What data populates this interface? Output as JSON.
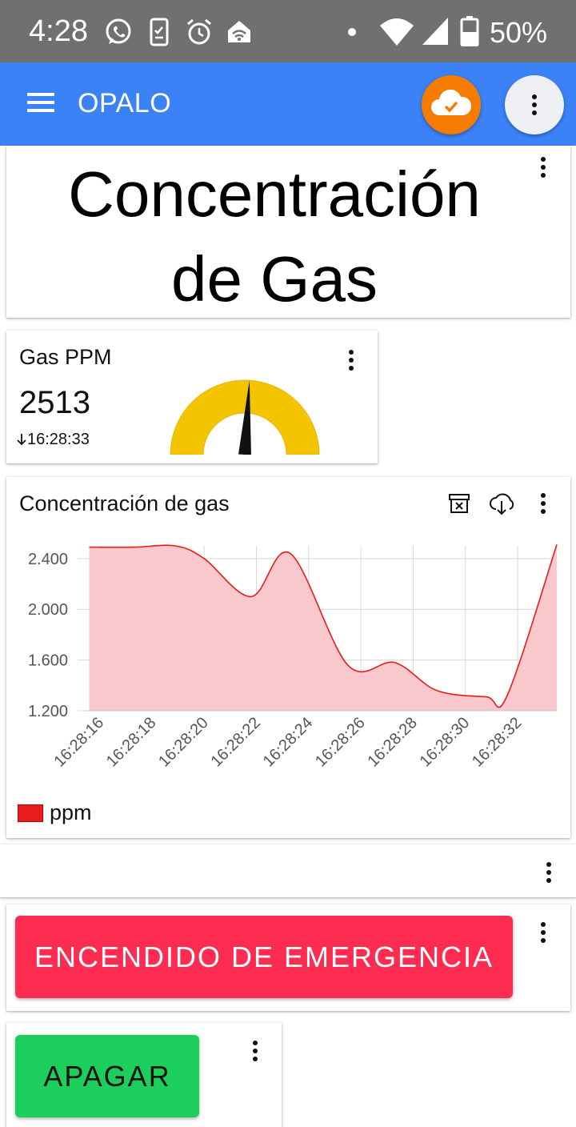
{
  "status_bar": {
    "time": "4:28",
    "battery": "50%",
    "icons": [
      "whatsapp-icon",
      "phone-check-icon",
      "alarm-icon",
      "home-wifi-icon",
      "dot-icon",
      "wifi-icon",
      "cell-signal-icon",
      "battery-icon"
    ]
  },
  "app_bar": {
    "title": "OPALO",
    "cloud_color": "#f57c00",
    "bar_color": "#3b82f6"
  },
  "title_card": {
    "line1": "Concentración",
    "line2": "de Gas"
  },
  "gauge_card": {
    "title": "Gas PPM",
    "value": "2513",
    "timestamp": "16:28:33",
    "gauge_fraction": 0.52,
    "gauge_color": "#f5c400"
  },
  "chart_card": {
    "title": "Concentración de gas"
  },
  "chart_data": {
    "type": "area",
    "title": "Concentración de gas",
    "x": [
      "16:28:15.6",
      "16:28:17.3",
      "16:28:18.9",
      "16:28:20.0",
      "16:28:21.8",
      "16:28:23.3",
      "16:28:25.5",
      "16:28:27.3",
      "16:28:28.9",
      "16:28:30.8",
      "16:28:31.6",
      "16:28:33.5"
    ],
    "series": [
      {
        "name": "ppm",
        "color": "#e81c1c",
        "fill": "#f8c8cc",
        "values": [
          2490,
          2490,
          2500,
          2400,
          2100,
          2440,
          1560,
          1580,
          1360,
          1310,
          1320,
          2510
        ]
      }
    ],
    "x_ticks": [
      "16:28:16",
      "16:28:18",
      "16:28:20",
      "16:28:22",
      "16:28:24",
      "16:28:26",
      "16:28:28",
      "16:28:30",
      "16:28:32"
    ],
    "y_ticks": [
      "1.200",
      "1.600",
      "2.000",
      "2.400"
    ],
    "y_tick_values": [
      1200,
      1600,
      2000,
      2400
    ],
    "ylim": [
      1200,
      2500
    ],
    "legend": "ppm",
    "legend_position": "bottom-left",
    "grid": true
  },
  "buttons": {
    "emergency": "ENCENDIDO DE EMERGENCIA",
    "off": "APAGAR"
  }
}
